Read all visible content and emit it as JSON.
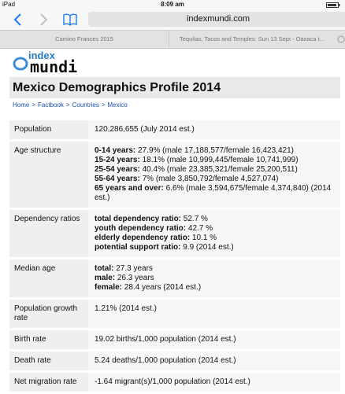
{
  "status_bar": {
    "device": "iPad",
    "time": "8:09 am"
  },
  "address_bar": {
    "url": "indexmundi.com"
  },
  "tabs": [
    "Camino Frances 2015",
    "Tequilas, Tacos and Temples: Sun 13 Sept - Oaxaca t..."
  ],
  "logo": {
    "top": "index",
    "bottom": "mundi"
  },
  "page": {
    "title": "Mexico Demographics Profile 2014",
    "breadcrumb": {
      "items": [
        "Home",
        "Factbook",
        "Countries",
        "Mexico"
      ],
      "separator": ">"
    }
  },
  "table": {
    "rows": [
      {
        "label": "Population",
        "lines": [
          {
            "text": "120,286,655 (July 2014 est.)"
          }
        ]
      },
      {
        "label": "Age structure",
        "lines": [
          {
            "bold": "0-14 years:",
            "text": " 27.9% (male 17,188,577/female 16,423,421)"
          },
          {
            "bold": "15-24 years:",
            "text": " 18.1% (male 10,999,445/female 10,741,999)"
          },
          {
            "bold": "25-54 years:",
            "text": " 40.4% (male 23,385,321/female 25,200,511)"
          },
          {
            "bold": "55-64 years:",
            "text": " 7% (male 3,850,792/female 4,527,074)"
          },
          {
            "bold": "65 years and over:",
            "text": " 6.6% (male 3,594,675/female 4,374,840) (2014 est.)"
          }
        ]
      },
      {
        "label": "Dependency ratios",
        "lines": [
          {
            "bold": "total dependency ratio:",
            "text": " 52.7 %"
          },
          {
            "bold": "youth dependency ratio:",
            "text": " 42.7 %"
          },
          {
            "bold": "elderly dependency ratio:",
            "text": " 10.1 %"
          },
          {
            "bold": "potential support ratio:",
            "text": " 9.9 (2014 est.)"
          }
        ]
      },
      {
        "label": "Median age",
        "lines": [
          {
            "bold": "total:",
            "text": " 27.3 years"
          },
          {
            "bold": "male:",
            "text": " 26.3 years"
          },
          {
            "bold": "female:",
            "text": " 28.4 years (2014 est.)"
          }
        ]
      },
      {
        "label": "Population growth rate",
        "lines": [
          {
            "text": "1.21% (2014 est.)"
          }
        ]
      },
      {
        "label": "Birth rate",
        "lines": [
          {
            "text": "19.02 births/1,000 population (2014 est.)"
          }
        ]
      },
      {
        "label": "Death rate",
        "lines": [
          {
            "text": "5.24 deaths/1,000 population (2014 est.)"
          }
        ]
      },
      {
        "label": "Net migration rate",
        "lines": [
          {
            "text": "-1.64 migrant(s)/1,000 population (2014 est.)"
          }
        ]
      }
    ]
  }
}
